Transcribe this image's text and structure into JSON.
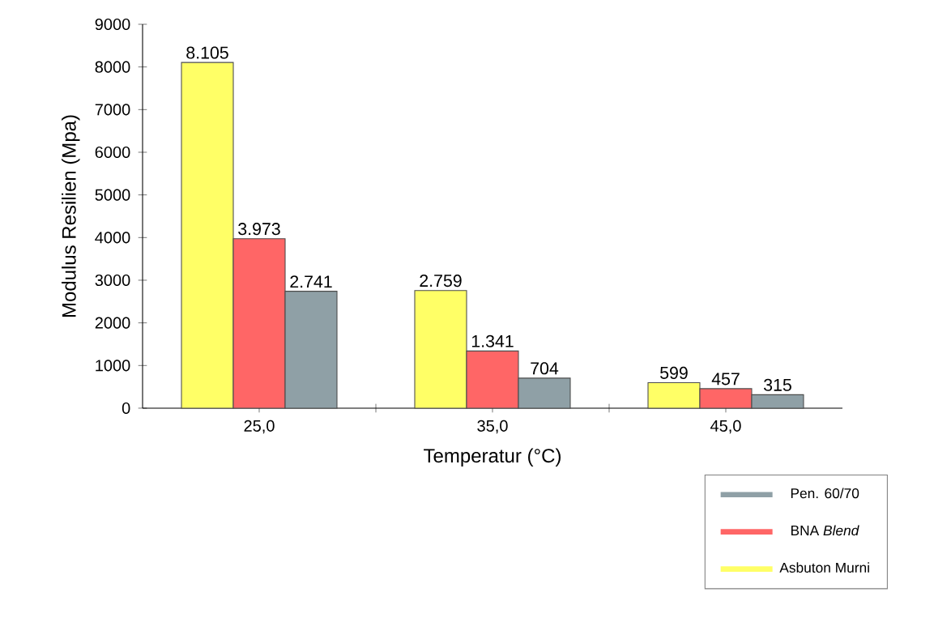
{
  "chart_data": {
    "type": "bar",
    "xlabel": "Temperatur (°C)",
    "ylabel": "Modulus Resilien (Mpa)",
    "categories": [
      "25,0",
      "35,0",
      "45,0"
    ],
    "series": [
      {
        "name": "Asbuton Murni",
        "color": "#ffff66",
        "values": [
          8105,
          2759,
          599
        ],
        "value_labels": [
          "8.105",
          "2.759",
          "599"
        ]
      },
      {
        "name": "BNA *Blend*",
        "color": "#ff6666",
        "values": [
          3973,
          1341,
          457
        ],
        "value_labels": [
          "3.973",
          "1.341",
          "457"
        ]
      },
      {
        "name": "Pen. 60/70",
        "color": "#8fa0a6",
        "values": [
          2741,
          704,
          315
        ],
        "value_labels": [
          "2.741",
          "704",
          "315"
        ]
      }
    ],
    "ylim": [
      0,
      9000
    ],
    "yticks": [
      0,
      1000,
      2000,
      3000,
      4000,
      5000,
      6000,
      7000,
      8000,
      9000
    ],
    "grid": false,
    "legend": "bottom right"
  }
}
